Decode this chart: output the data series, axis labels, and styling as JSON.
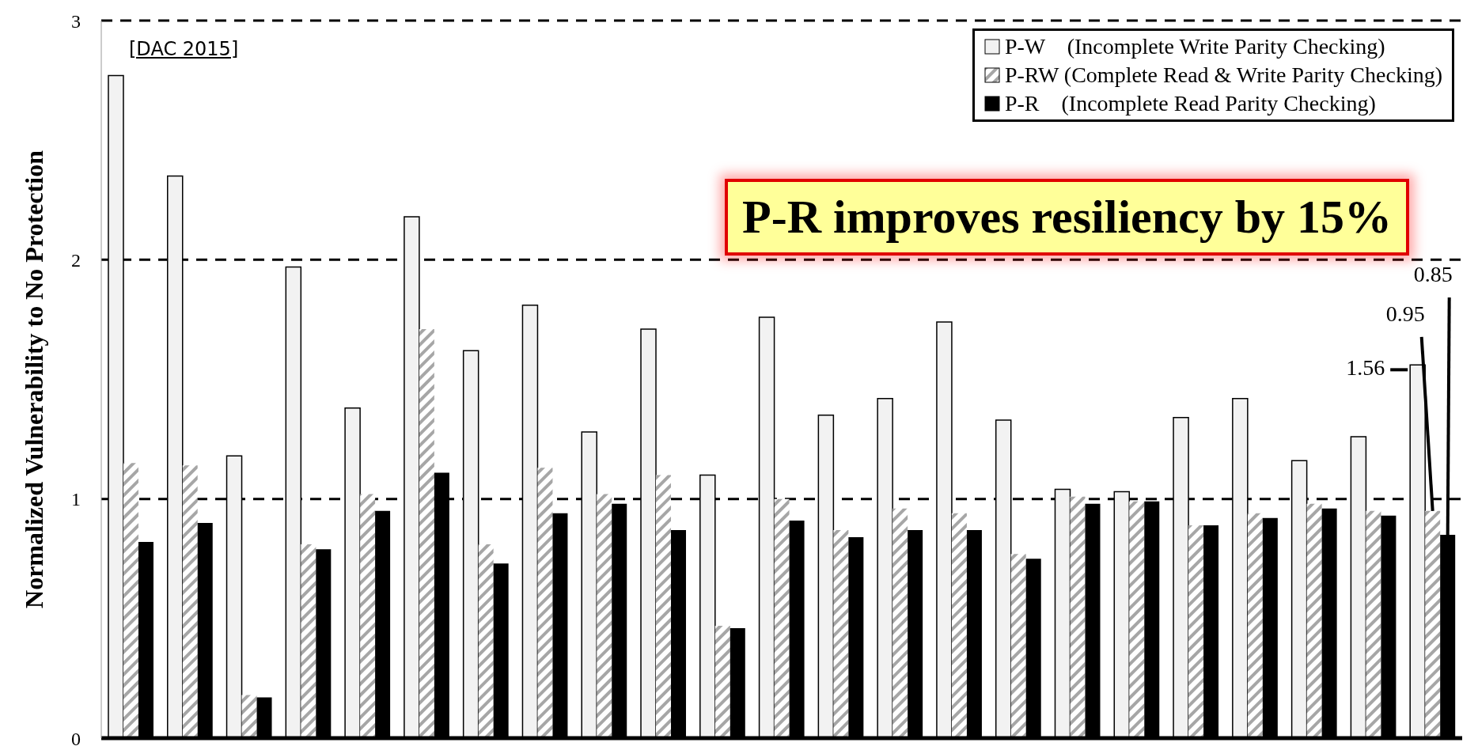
{
  "chart_data": {
    "type": "bar",
    "ylabel": "Normalized Vulnerability to No Protection",
    "categories": [
      null,
      null,
      null,
      null,
      null,
      null,
      null,
      null,
      null,
      null,
      null,
      null,
      null,
      null,
      null,
      null,
      null,
      null,
      null,
      null,
      null,
      null,
      null
    ],
    "series": [
      {
        "name": "P-W    (Incomplete Write Parity Checking)",
        "color": "#f2f2f2",
        "values": [
          2.77,
          2.35,
          1.18,
          1.97,
          1.38,
          2.18,
          1.62,
          1.81,
          1.28,
          1.71,
          1.1,
          1.76,
          1.35,
          1.42,
          1.74,
          1.33,
          1.04,
          1.03,
          1.34,
          1.42,
          1.16,
          1.26,
          1.56
        ],
        "value_labels": [
          null,
          null,
          null,
          null,
          null,
          null,
          null,
          null,
          null,
          null,
          null,
          null,
          null,
          null,
          null,
          null,
          null,
          null,
          null,
          null,
          null,
          null,
          "1.56"
        ]
      },
      {
        "name": "P-RW (Complete Read & Write Parity Checking)",
        "color": "#a6a6a6",
        "values": [
          1.15,
          1.14,
          0.18,
          0.81,
          1.02,
          1.71,
          0.81,
          1.13,
          1.02,
          1.1,
          0.47,
          1.0,
          0.87,
          0.96,
          0.94,
          0.77,
          1.01,
          0.99,
          0.89,
          0.94,
          0.98,
          0.95,
          0.95
        ],
        "value_labels": [
          null,
          null,
          null,
          null,
          null,
          null,
          null,
          null,
          null,
          null,
          null,
          null,
          null,
          null,
          null,
          null,
          null,
          null,
          null,
          null,
          null,
          null,
          "0.95"
        ]
      },
      {
        "name": "P-R    (Incomplete Read Parity Checking)",
        "color": "#000000",
        "values": [
          0.82,
          0.9,
          0.17,
          0.79,
          0.95,
          1.11,
          0.73,
          0.94,
          0.98,
          0.87,
          0.46,
          0.91,
          0.84,
          0.87,
          0.87,
          0.75,
          0.98,
          0.99,
          0.89,
          0.92,
          0.96,
          0.93,
          0.85
        ],
        "value_labels": [
          null,
          null,
          null,
          null,
          null,
          null,
          null,
          null,
          null,
          null,
          null,
          null,
          null,
          null,
          null,
          null,
          null,
          null,
          null,
          null,
          null,
          null,
          "0.85"
        ]
      }
    ],
    "ylim": [
      0,
      3
    ],
    "yticks": [
      0,
      1,
      2,
      3
    ],
    "grid": "y",
    "legend": "top right",
    "annotations": [
      "[DAC 2015]",
      "P-R improves resiliency by 15%"
    ]
  }
}
